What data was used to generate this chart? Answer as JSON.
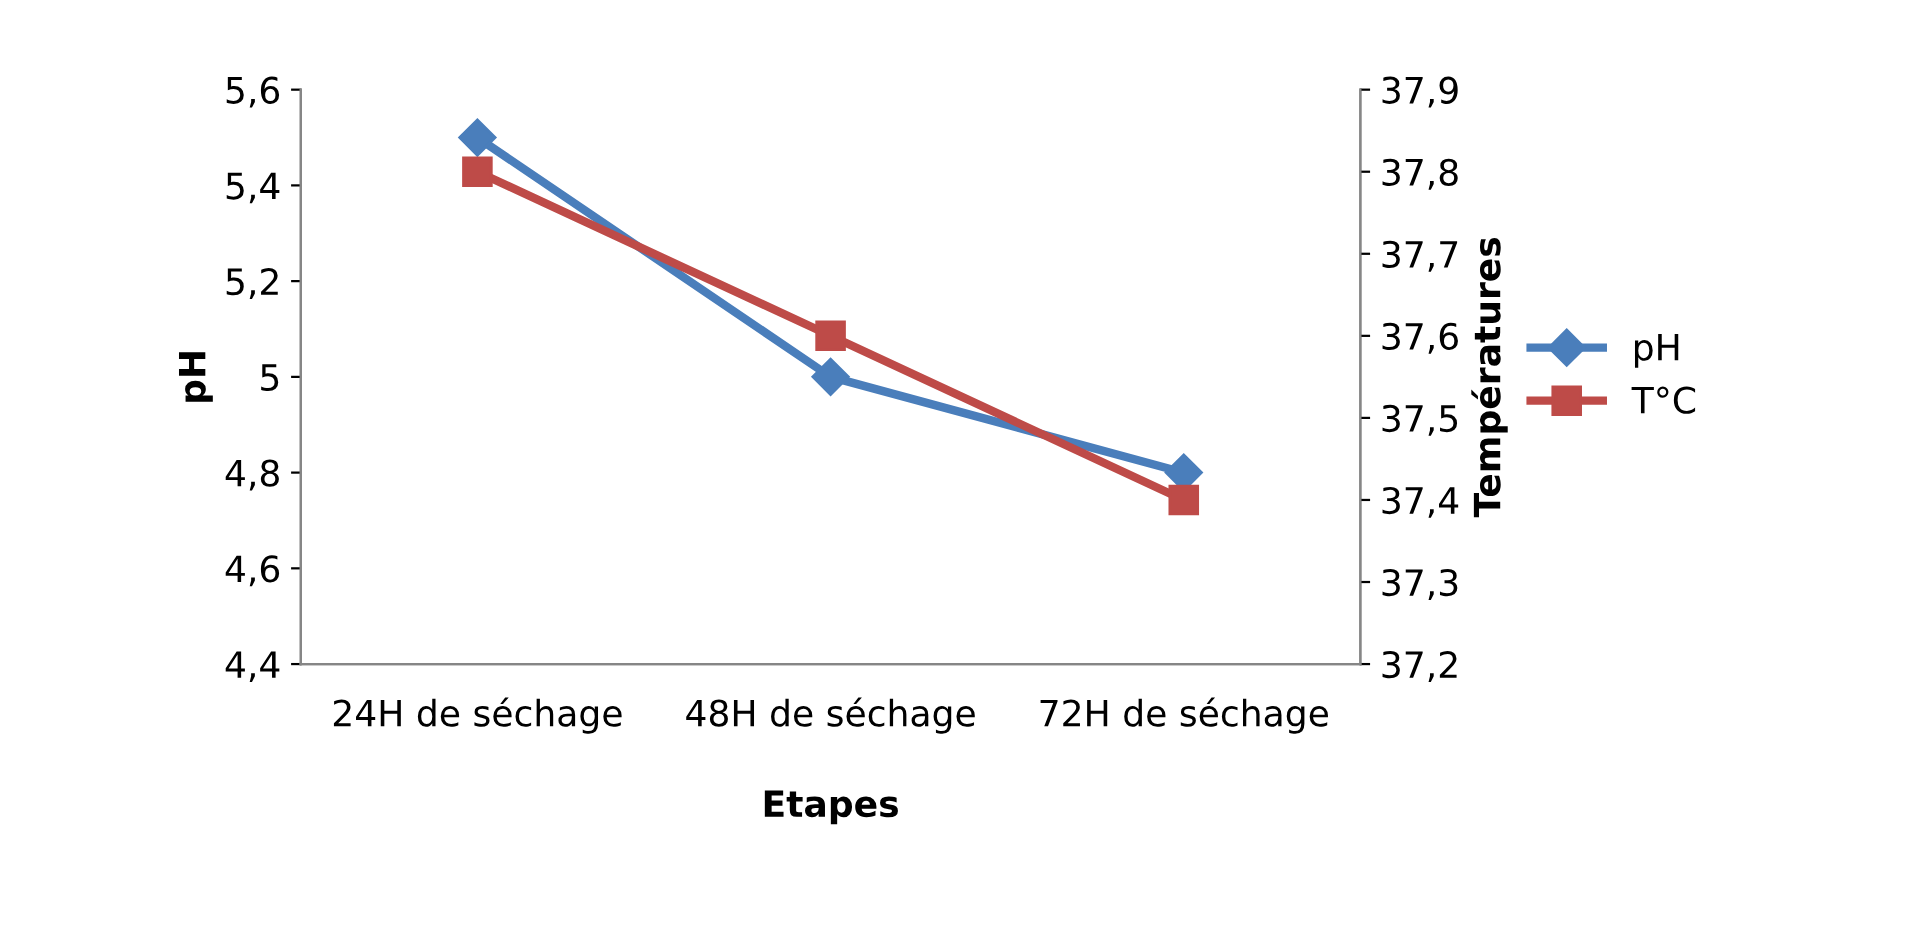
{
  "chart_data": {
    "type": "line",
    "xlabel": "Etapes",
    "ylabel": "pH",
    "y2label": "Températures",
    "categories": [
      "24H de séchage",
      "48H de séchage",
      "72H de séchage"
    ],
    "series": [
      {
        "name": "pH",
        "color": "#4a7ebb",
        "values": [
          5.5,
          5.0,
          4.8
        ],
        "marker": "diamond"
      },
      {
        "name": "T°C",
        "color": "#be4b48",
        "values": [
          37.8,
          37.6,
          37.4
        ],
        "marker": "square",
        "axis": "y2"
      }
    ],
    "ylim": [
      4.4,
      5.6
    ],
    "yticks": [
      {
        "value": 4.4,
        "label": "4,4"
      },
      {
        "value": 4.6,
        "label": "4,6"
      },
      {
        "value": 4.8,
        "label": "4,8"
      },
      5,
      {
        "value": 5.2,
        "label": "5,2"
      },
      {
        "value": 5.4,
        "label": "5,4"
      },
      {
        "value": 5.6,
        "label": "5,6"
      }
    ],
    "y2lim": [
      37.2,
      37.9
    ],
    "y2ticks": [
      {
        "value": 37.2,
        "label": "37,2"
      },
      {
        "value": 37.3,
        "label": "37,3"
      },
      {
        "value": 37.4,
        "label": "37,4"
      },
      {
        "value": 37.5,
        "label": "37,5"
      },
      {
        "value": 37.6,
        "label": "37,6"
      },
      {
        "value": 37.7,
        "label": "37,7"
      },
      {
        "value": 37.8,
        "label": "37,8"
      },
      {
        "value": 37.9,
        "label": "37,9"
      }
    ],
    "grid": false,
    "legend": "right",
    "line_style": "solid"
  }
}
